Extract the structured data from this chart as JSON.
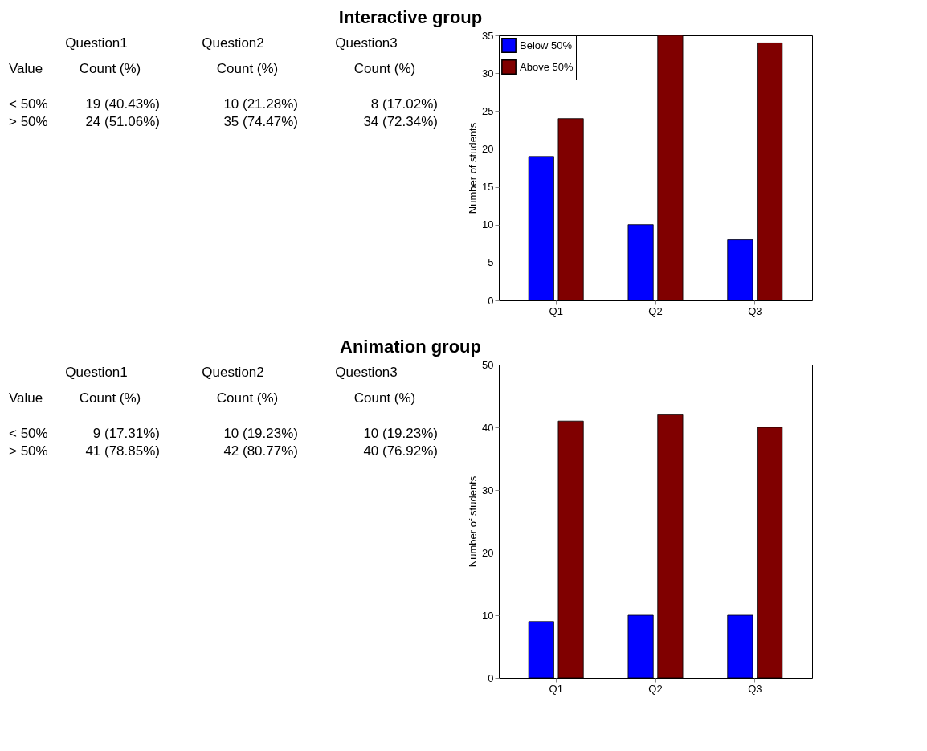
{
  "chart_data": [
    {
      "type": "bar",
      "title": "Interactive group",
      "ylabel": "Number of students",
      "categories": [
        "Q1",
        "Q2",
        "Q3"
      ],
      "series": [
        {
          "name": "Below 50%",
          "color": "#0000ff",
          "values": [
            19,
            10,
            8
          ]
        },
        {
          "name": "Above 50%",
          "color": "#800000",
          "values": [
            24,
            35,
            34
          ]
        }
      ],
      "ylim": [
        0,
        35
      ],
      "yticks": [
        0,
        5,
        10,
        15,
        20,
        25,
        30,
        35
      ],
      "grid": false,
      "legend": "top left",
      "annotations": [
        "Question1",
        "Question2",
        "Question3",
        "Value",
        "Count (%)",
        "Count (%)",
        "Count (%)",
        "< 50%",
        "19 (40.43%)",
        "10 (21.28%)",
        "8 (17.02%)",
        "> 50%",
        "24 (51.06%)",
        "35 (74.47%)",
        "34 (72.34%)"
      ]
    },
    {
      "type": "bar",
      "title": "Animation group",
      "ylabel": "Number of students",
      "categories": [
        "Q1",
        "Q2",
        "Q3"
      ],
      "series": [
        {
          "color": "#0000ff",
          "values": [
            9,
            10,
            10
          ]
        },
        {
          "color": "#800000",
          "values": [
            41,
            42,
            40
          ]
        }
      ],
      "ylim": [
        0,
        50
      ],
      "yticks": [
        0,
        10,
        20,
        30,
        40,
        50
      ],
      "grid": false,
      "legend": false,
      "annotations": [
        "Question1",
        "Question2",
        "Question3",
        "Value",
        "Count (%)",
        "Count (%)",
        "Count (%)",
        "< 50%",
        "9 (17.31%)",
        "10 (19.23%)",
        "10 (19.23%)",
        "> 50%",
        "41 (78.85%)",
        "42 (80.77%)",
        "40 (76.92%)"
      ]
    }
  ]
}
